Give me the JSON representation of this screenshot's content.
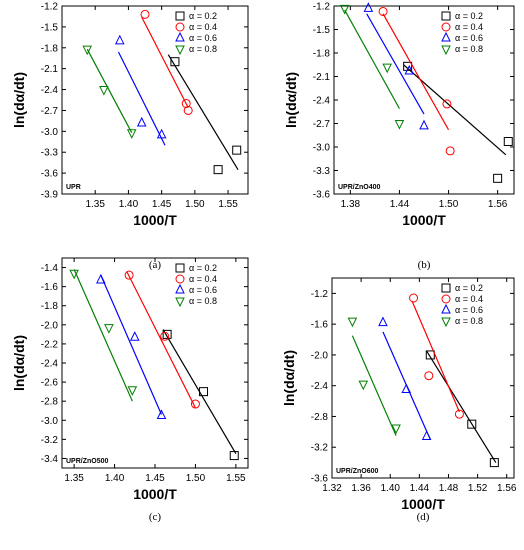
{
  "chart_data": [
    {
      "type": "scatter",
      "panel_label": "(a)",
      "sample": "UPR",
      "xlabel": "1000/T",
      "ylabel": "ln(dα/dt)",
      "xlim": [
        1.3,
        1.58
      ],
      "ylim": [
        -3.9,
        -1.2
      ],
      "xticks": [
        "1.35",
        "1.40",
        "1.45",
        "1.50",
        "1.55"
      ],
      "yticks": [
        "-1.2",
        "-1.5",
        "-1.8",
        "-2.1",
        "-2.4",
        "-2.7",
        "-3.0",
        "-3.3",
        "-3.6",
        "-3.9"
      ],
      "series": [
        {
          "name": "α = 0.2",
          "color": "#000000",
          "marker": "square",
          "x": [
            1.47,
            1.535,
            1.563
          ],
          "y": [
            -2.0,
            -3.55,
            -3.27
          ],
          "fit": [
            [
              1.46,
              -1.9
            ],
            [
              1.565,
              -3.55
            ]
          ]
        },
        {
          "name": "α = 0.4",
          "color": "#ff0000",
          "marker": "circle",
          "x": [
            1.425,
            1.487,
            1.49
          ],
          "y": [
            -1.32,
            -2.6,
            -2.7
          ],
          "fit": [
            [
              1.42,
              -1.36
            ],
            [
              1.49,
              -2.66
            ]
          ]
        },
        {
          "name": "α = 0.6",
          "color": "#0000ff",
          "marker": "triangle",
          "x": [
            1.387,
            1.42,
            1.45
          ],
          "y": [
            -1.7,
            -2.88,
            -3.05
          ],
          "fit": [
            [
              1.385,
              -1.86
            ],
            [
              1.455,
              -3.2
            ]
          ]
        },
        {
          "name": "α = 0.8",
          "color": "#008000",
          "marker": "triangle-down",
          "x": [
            1.338,
            1.363,
            1.405
          ],
          "y": [
            -1.82,
            -2.4,
            -3.02
          ],
          "fit": [
            [
              1.338,
              -1.82
            ],
            [
              1.405,
              -3.02
            ]
          ]
        }
      ]
    },
    {
      "type": "scatter",
      "panel_label": "(b)",
      "sample": "UPR/ZnO400",
      "xlabel": "1000/T",
      "ylabel": "ln(dα/dt)",
      "xlim": [
        1.36,
        1.58
      ],
      "ylim": [
        -3.6,
        -1.2
      ],
      "xticks": [
        "1.38",
        "1.44",
        "1.50",
        "1.56"
      ],
      "yticks": [
        "-1.2",
        "-1.5",
        "-1.8",
        "-2.1",
        "-2.4",
        "-2.7",
        "-3.0",
        "-3.3",
        "-3.6"
      ],
      "series": [
        {
          "name": "α = 0.2",
          "color": "#000000",
          "marker": "square",
          "x": [
            1.45,
            1.56,
            1.573
          ],
          "y": [
            -1.97,
            -3.4,
            -2.93
          ],
          "fit": [
            [
              1.445,
              -1.95
            ],
            [
              1.57,
              -3.1
            ]
          ]
        },
        {
          "name": "α = 0.4",
          "color": "#ff0000",
          "marker": "circle",
          "x": [
            1.42,
            1.498,
            1.502
          ],
          "y": [
            -1.27,
            -2.45,
            -3.05
          ],
          "fit": [
            [
              1.42,
              -1.3
            ],
            [
              1.5,
              -2.78
            ]
          ]
        },
        {
          "name": "α = 0.6",
          "color": "#0000ff",
          "marker": "triangle",
          "x": [
            1.402,
            1.452,
            1.47
          ],
          "y": [
            -1.23,
            -2.03,
            -2.73
          ],
          "fit": [
            [
              1.4,
              -1.3
            ],
            [
              1.47,
              -2.58
            ]
          ]
        },
        {
          "name": "α = 0.8",
          "color": "#008000",
          "marker": "triangle-down",
          "x": [
            1.373,
            1.425,
            1.44
          ],
          "y": [
            -1.23,
            -1.98,
            -2.7
          ],
          "fit": [
            [
              1.373,
              -1.25
            ],
            [
              1.44,
              -2.51
            ]
          ]
        }
      ]
    },
    {
      "type": "scatter",
      "panel_label": "(c)",
      "sample": "UPR/ZnO500",
      "xlabel": "1000/T",
      "ylabel": "ln(dα/dt)",
      "xlim": [
        1.335,
        1.565
      ],
      "ylim": [
        -3.5,
        -1.3
      ],
      "xticks": [
        "1.35",
        "1.40",
        "1.45",
        "1.50",
        "1.55"
      ],
      "yticks": [
        "-1.4",
        "-1.6",
        "-1.8",
        "-2.0",
        "-2.2",
        "-2.4",
        "-2.6",
        "-2.8",
        "-3.0",
        "-3.2",
        "-3.4"
      ],
      "series": [
        {
          "name": "α = 0.2",
          "color": "#000000",
          "marker": "square",
          "x": [
            1.465,
            1.51,
            1.548
          ],
          "y": [
            -2.1,
            -2.7,
            -3.37
          ],
          "fit": [
            [
              1.46,
              -2.05
            ],
            [
              1.55,
              -3.35
            ]
          ]
        },
        {
          "name": "α = 0.4",
          "color": "#ff0000",
          "marker": "circle",
          "x": [
            1.418,
            1.462,
            1.5
          ],
          "y": [
            -1.48,
            -2.12,
            -2.83
          ],
          "fit": [
            [
              1.415,
              -1.44
            ],
            [
              1.5,
              -2.87
            ]
          ]
        },
        {
          "name": "α = 0.6",
          "color": "#0000ff",
          "marker": "triangle",
          "x": [
            1.383,
            1.425,
            1.458
          ],
          "y": [
            -1.53,
            -2.13,
            -2.95
          ],
          "fit": [
            [
              1.383,
              -1.48
            ],
            [
              1.458,
              -2.94
            ]
          ]
        },
        {
          "name": "α = 0.8",
          "color": "#008000",
          "marker": "triangle-down",
          "x": [
            1.35,
            1.393,
            1.422
          ],
          "y": [
            -1.46,
            -2.03,
            -2.68
          ],
          "fit": [
            [
              1.35,
              -1.42
            ],
            [
              1.422,
              -2.8
            ]
          ]
        }
      ]
    },
    {
      "type": "scatter",
      "panel_label": "(d)",
      "sample": "UPR/ZnO600",
      "xlabel": "1000/T",
      "ylabel": "ln(dα/dt)",
      "xlim": [
        1.32,
        1.57
      ],
      "ylim": [
        -3.6,
        -1.0
      ],
      "xticks": [
        "1.32",
        "1.36",
        "1.40",
        "1.44",
        "1.48",
        "1.52",
        "1.56"
      ],
      "yticks": [
        "-1.2",
        "-1.6",
        "-2.0",
        "-2.4",
        "-2.8",
        "-3.2",
        "-3.6"
      ],
      "series": [
        {
          "name": "α = 0.2",
          "color": "#000000",
          "marker": "square",
          "x": [
            1.455,
            1.512,
            1.543
          ],
          "y": [
            -2.0,
            -2.9,
            -3.4
          ],
          "fit": [
            [
              1.45,
              -1.95
            ],
            [
              1.545,
              -3.4
            ]
          ]
        },
        {
          "name": "α = 0.4",
          "color": "#ff0000",
          "marker": "circle",
          "x": [
            1.432,
            1.453,
            1.495
          ],
          "y": [
            -1.26,
            -2.27,
            -2.77
          ],
          "fit": [
            [
              1.43,
              -1.3
            ],
            [
              1.495,
              -2.74
            ]
          ]
        },
        {
          "name": "α = 0.6",
          "color": "#0000ff",
          "marker": "triangle",
          "x": [
            1.39,
            1.422,
            1.45
          ],
          "y": [
            -1.58,
            -2.45,
            -3.06
          ],
          "fit": [
            [
              1.39,
              -1.7
            ],
            [
              1.455,
              -3.1
            ]
          ]
        },
        {
          "name": "α = 0.8",
          "color": "#008000",
          "marker": "triangle-down",
          "x": [
            1.348,
            1.363,
            1.408
          ],
          "y": [
            -1.56,
            -2.38,
            -2.95
          ],
          "fit": [
            [
              1.348,
              -1.75
            ],
            [
              1.408,
              -3.05
            ]
          ]
        }
      ]
    }
  ]
}
